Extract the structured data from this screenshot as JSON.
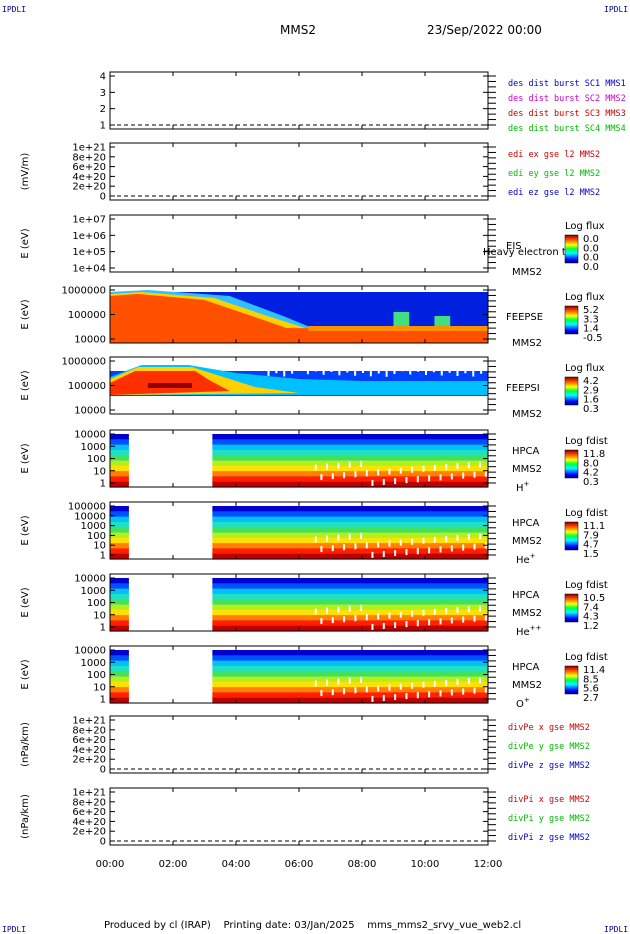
{
  "corners": {
    "tl": "IPDLI",
    "tr": "IPDLI",
    "bl": "IPDLI",
    "br": "IPDLI"
  },
  "header": {
    "spacecraft": "MMS2",
    "date": "23/Sep/2022 00:00"
  },
  "footer": {
    "text": "Produced by cl (IRAP)    Printing date: 03/Jan/2025    mms_mms2_srvy_vue_web2.cl"
  },
  "colors": {
    "red": "#cc0000",
    "green": "#00bb00",
    "blue": "#0000cc",
    "magenta": "#cc00cc"
  },
  "chart_data": {
    "type": "heatmap",
    "time_range": [
      "00:00",
      "12:00"
    ],
    "time_ticks": [
      "00:00",
      "02:00",
      "04:00",
      "06:00",
      "08:00",
      "10:00",
      "12:00"
    ],
    "panels": [
      {
        "id": "sc",
        "yticks": [
          "4",
          "3",
          "2",
          "1"
        ],
        "ylabel": "",
        "labels": [
          {
            "text": "des dist burst SC1 MMS1",
            "color": "blue"
          },
          {
            "text": "des dist burst SC2 MMS2",
            "color": "magenta"
          },
          {
            "text": "des dist burst SC3 MMS3",
            "color": "red"
          },
          {
            "text": "des dist burst SC4 MMS4",
            "color": "green"
          }
        ]
      },
      {
        "id": "edi",
        "yticks": [
          "1e+21",
          "8e+20",
          "6e+20",
          "4e+20",
          "2e+20",
          "0"
        ],
        "ylabel": "(mV/m)",
        "labels": [
          {
            "text": "edi ex gse l2 MMS2",
            "color": "red"
          },
          {
            "text": "edi ey gse l2 MMS2",
            "color": "green"
          },
          {
            "text": "edi ez gse l2 MMS2",
            "color": "blue"
          }
        ]
      },
      {
        "id": "eis",
        "yticks": [
          "1e+07",
          "1e+06",
          "1e+05",
          "1e+04"
        ],
        "ylabel": "E (eV)",
        "instrument": "EIS",
        "extra": "Heavy electron tof",
        "sc": "MMS2",
        "cb_title": "Log flux",
        "cb_values": [
          "0.0",
          "0.0",
          "0.0",
          "0.0"
        ]
      },
      {
        "id": "feepse",
        "yticks": [
          "1000000",
          "100000",
          "10000"
        ],
        "ylabel": "E (eV)",
        "instrument": "FEEPSE",
        "sc": "MMS2",
        "cb_title": "Log flux",
        "cb_values": [
          "5.2",
          "3.3",
          "1.4",
          "-0.5"
        ]
      },
      {
        "id": "feepsi",
        "yticks": [
          "1000000",
          "100000",
          "10000"
        ],
        "ylabel": "E (eV)",
        "instrument": "FEEPSI",
        "sc": "MMS2",
        "cb_title": "Log flux",
        "cb_values": [
          "4.2",
          "2.9",
          "1.6",
          "0.3"
        ]
      },
      {
        "id": "hpca_h",
        "yticks": [
          "10000",
          "1000",
          "100",
          "10",
          "1"
        ],
        "ylabel": "E (eV)",
        "instrument": "HPCA",
        "sc": "MMS2",
        "species": "H",
        "sup": "+",
        "cb_title": "Log fdist",
        "cb_values": [
          "11.8",
          "8.0",
          "4.2",
          "0.3"
        ]
      },
      {
        "id": "hpca_he",
        "yticks": [
          "100000",
          "10000",
          "1000",
          "100",
          "10",
          "1"
        ],
        "ylabel": "E (eV)",
        "instrument": "HPCA",
        "sc": "MMS2",
        "species": "He",
        "sup": "+",
        "cb_title": "Log fdist",
        "cb_values": [
          "11.1",
          "7.9",
          "4.7",
          "1.5"
        ]
      },
      {
        "id": "hpca_hepp",
        "yticks": [
          "10000",
          "1000",
          "100",
          "10",
          "1"
        ],
        "ylabel": "E (eV)",
        "instrument": "HPCA",
        "sc": "MMS2",
        "species": "He",
        "sup": "++",
        "cb_title": "Log fdist",
        "cb_values": [
          "10.5",
          "7.4",
          "4.3",
          "1.2"
        ]
      },
      {
        "id": "hpca_o",
        "yticks": [
          "10000",
          "1000",
          "100",
          "10",
          "1"
        ],
        "ylabel": "E (eV)",
        "instrument": "HPCA",
        "sc": "MMS2",
        "species": "O",
        "sup": "+",
        "cb_title": "Log fdist",
        "cb_values": [
          "11.4",
          "8.5",
          "5.6",
          "2.7"
        ]
      },
      {
        "id": "divpe",
        "yticks": [
          "1e+21",
          "8e+20",
          "6e+20",
          "4e+20",
          "2e+20",
          "0"
        ],
        "ylabel": "(nPa/km)",
        "labels": [
          {
            "text": "divPe x gse MMS2",
            "color": "red"
          },
          {
            "text": "divPe y gse MMS2",
            "color": "green"
          },
          {
            "text": "divPe z gse MMS2",
            "color": "blue"
          }
        ]
      },
      {
        "id": "divpi",
        "yticks": [
          "1e+21",
          "8e+20",
          "6e+20",
          "4e+20",
          "2e+20",
          "0"
        ],
        "ylabel": "(nPa/km)",
        "labels": [
          {
            "text": "divPi x gse MMS2",
            "color": "red"
          },
          {
            "text": "divPi y gse MMS2",
            "color": "green"
          },
          {
            "text": "divPi z gse MMS2",
            "color": "blue"
          }
        ]
      }
    ]
  }
}
